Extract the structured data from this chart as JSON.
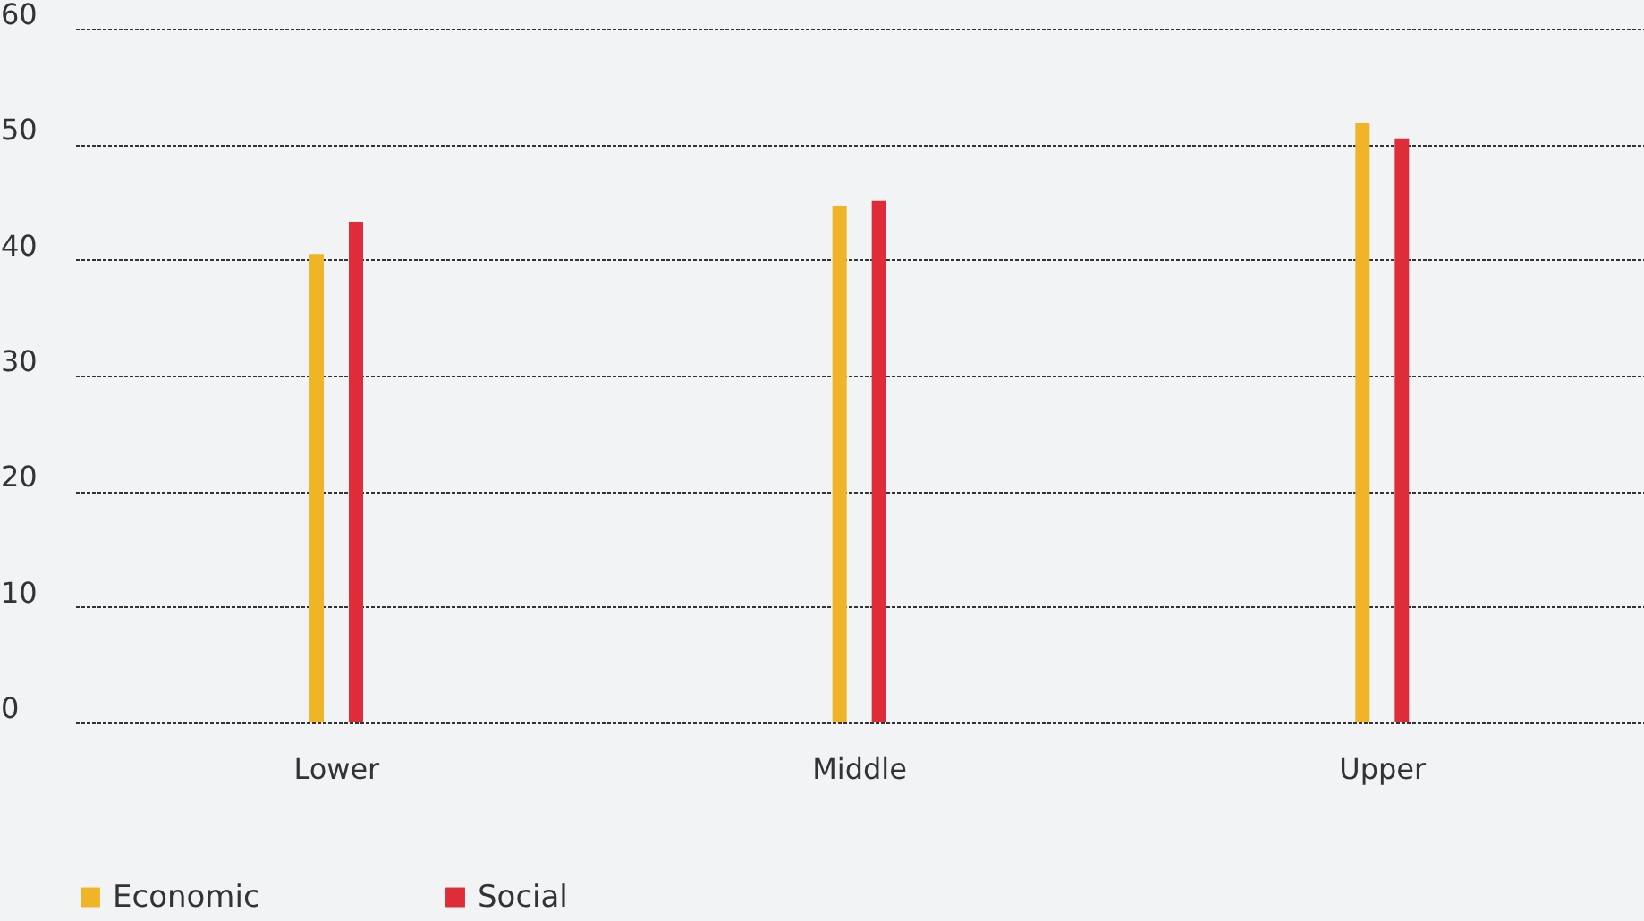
{
  "chart_data": {
    "type": "bar",
    "categories": [
      "Lower",
      "Middle",
      "Upper"
    ],
    "series": [
      {
        "name": "Economic",
        "color": "#f0b429",
        "values": [
          40.5,
          44.7,
          51.8
        ]
      },
      {
        "name": "Social",
        "color": "#de2d38",
        "values": [
          43.3,
          45.1,
          50.5
        ]
      }
    ],
    "ylim": [
      0,
      60
    ],
    "yticks": [
      0,
      10,
      20,
      30,
      40,
      50,
      60
    ],
    "grid": "y",
    "legend": "bottom left"
  }
}
